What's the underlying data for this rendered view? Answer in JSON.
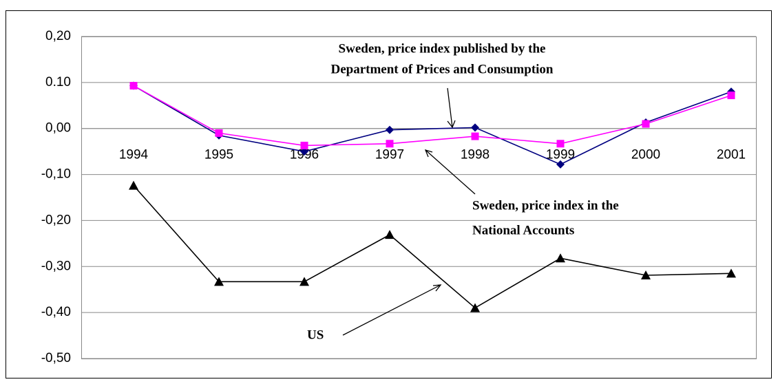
{
  "chart_data": {
    "type": "line",
    "categories": [
      "1994",
      "1995",
      "1996",
      "1997",
      "1998",
      "1999",
      "2000",
      "2001"
    ],
    "series": [
      {
        "name": [
          "Sweden, price index published by the",
          "Department of Prices and Consumption"
        ],
        "color": "#000080",
        "marker": "diamond",
        "values": [
          0.093,
          -0.015,
          -0.05,
          -0.003,
          0.002,
          -0.078,
          0.013,
          0.08
        ]
      },
      {
        "name": [
          "Sweden, price index in the",
          "National Accounts"
        ],
        "color": "#ff00ff",
        "marker": "square",
        "values": [
          0.093,
          -0.01,
          -0.037,
          -0.033,
          -0.017,
          -0.033,
          0.01,
          0.072
        ]
      },
      {
        "name": [
          "US"
        ],
        "color": "#000000",
        "marker": "triangle",
        "values": [
          -0.124,
          -0.333,
          -0.333,
          -0.231,
          -0.39,
          -0.282,
          -0.319,
          -0.315
        ]
      }
    ],
    "ylim": [
      -0.5,
      0.2
    ],
    "yticks": [
      {
        "value": 0.2,
        "label": "0,20"
      },
      {
        "value": 0.1,
        "label": "0.10"
      },
      {
        "value": 0,
        "label": "0,00"
      },
      {
        "value": -0.1,
        "label": "-0,10"
      },
      {
        "value": -0.2,
        "label": "-0,20"
      },
      {
        "value": -0.3,
        "label": "-0,30"
      },
      {
        "value": -0.4,
        "label": "-0,40"
      },
      {
        "value": -0.5,
        "label": "-0,50"
      }
    ],
    "grid": true
  }
}
